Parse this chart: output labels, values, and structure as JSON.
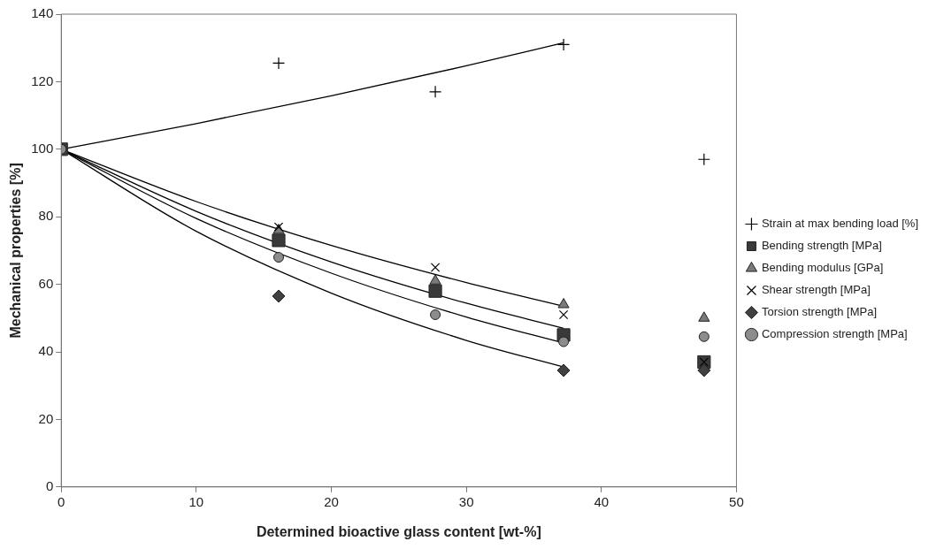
{
  "chart_data": {
    "type": "scatter",
    "xlabel": "Determined bioactive glass content [wt-%]",
    "ylabel": "Mechanical properties [%]",
    "xlim": [
      0,
      50
    ],
    "xticks": [
      0,
      10,
      20,
      30,
      40,
      50
    ],
    "ylim": [
      0,
      140
    ],
    "yticks": [
      0,
      20,
      40,
      60,
      80,
      100,
      120,
      140
    ],
    "grid": false,
    "legend": "right",
    "series": [
      {
        "name": "Strain at max bending load [%]",
        "color": "#000000",
        "marker": "cross",
        "x": [
          16.1,
          27.7,
          37.2,
          47.6
        ],
        "values": [
          125.5,
          117,
          131,
          97
        ]
      },
      {
        "name": "Bending strength [MPa]",
        "color": "#3a3a3a",
        "marker": "square",
        "x": [
          0,
          16.1,
          27.7,
          37.2,
          47.6
        ],
        "values": [
          100,
          73,
          58,
          45,
          37
        ]
      },
      {
        "name": "Bending modulus [GPa]",
        "color": "#7a7a7a",
        "marker": "triangle",
        "x": [
          16.1,
          27.7,
          37.2,
          47.6
        ],
        "values": [
          76,
          61,
          54,
          50
        ]
      },
      {
        "name": "Shear strength [MPa]",
        "color": "#000000",
        "marker": "x",
        "x": [
          16.1,
          27.7,
          37.2,
          47.6
        ],
        "values": [
          77,
          65,
          51,
          37
        ]
      },
      {
        "name": "Torsion strength [MPa]",
        "color": "#404040",
        "marker": "diamond",
        "x": [
          16.1,
          27.7,
          37.2,
          47.6
        ],
        "values": [
          56.5,
          null,
          34.5,
          34.5
        ]
      },
      {
        "name": "Compression strength [MPa]",
        "color": "#8c8c8c",
        "marker": "circle",
        "x": [
          0,
          16.1,
          27.7,
          37.2,
          47.6
        ],
        "values": [
          100,
          68,
          51,
          43,
          44.5
        ]
      },
      {
        "type": "line",
        "color": "#000000",
        "marker": "none",
        "x": [
          0,
          10,
          20,
          30,
          37.2
        ],
        "values": [
          100,
          107.6,
          115.8,
          124.7,
          131.5
        ]
      },
      {
        "type": "line",
        "color": "#000000",
        "marker": "none",
        "x": [
          0,
          10,
          20,
          30,
          37.2
        ],
        "values": [
          100,
          84.5,
          71.5,
          60.5,
          53.5
        ]
      },
      {
        "type": "line",
        "color": "#000000",
        "marker": "none",
        "x": [
          0,
          10,
          20,
          30,
          37.2
        ],
        "values": [
          100,
          81.6,
          66.6,
          54.4,
          47
        ]
      },
      {
        "type": "line",
        "color": "#000000",
        "marker": "none",
        "x": [
          0,
          10,
          20,
          30,
          37.2
        ],
        "values": [
          100,
          79.5,
          63.3,
          50.3,
          42.6
        ]
      },
      {
        "type": "line",
        "color": "#000000",
        "marker": "none",
        "x": [
          0,
          10,
          20,
          30,
          37.2
        ],
        "values": [
          100,
          75.7,
          57.4,
          43.4,
          35.5
        ]
      }
    ]
  }
}
